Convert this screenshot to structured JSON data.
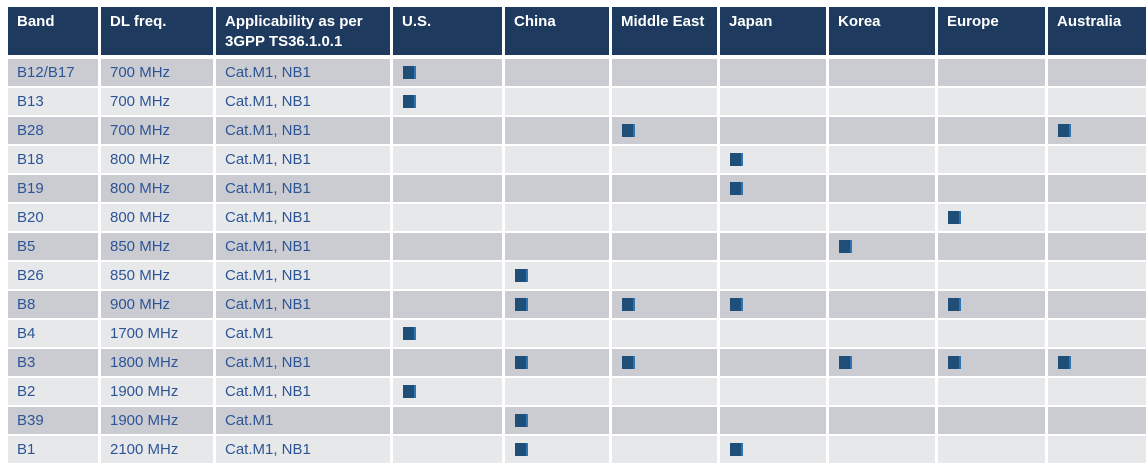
{
  "colors": {
    "page_bg": "#FFFFFF",
    "header_bg": "#1E3A5F",
    "header_text": "#FFFFFF",
    "row_dark": "#CBCCD1",
    "row_light": "#E7E8EA",
    "cell_text": "#2D5596",
    "marker": "#1F4E79",
    "marker_edge": "#2E74B5"
  },
  "table": {
    "columns": [
      {
        "key": "band",
        "label": "Band"
      },
      {
        "key": "dl_freq",
        "label": "DL freq."
      },
      {
        "key": "applicability",
        "label": "Applicability as per 3GPP TS36.1.0.1"
      },
      {
        "key": "us",
        "label": "U.S."
      },
      {
        "key": "china",
        "label": "China"
      },
      {
        "key": "middle_east",
        "label": "Middle East"
      },
      {
        "key": "japan",
        "label": "Japan"
      },
      {
        "key": "korea",
        "label": "Korea"
      },
      {
        "key": "europe",
        "label": "Europe"
      },
      {
        "key": "australia",
        "label": "Australia"
      }
    ],
    "region_keys": [
      "us",
      "china",
      "middle_east",
      "japan",
      "korea",
      "europe",
      "australia"
    ],
    "marker_glyph": "filled-square",
    "rows": [
      {
        "band": "B12/B17",
        "dl_freq": "700 MHz",
        "applicability": "Cat.M1, NB1",
        "regions": [
          "us"
        ]
      },
      {
        "band": "B13",
        "dl_freq": "700 MHz",
        "applicability": "Cat.M1, NB1",
        "regions": [
          "us"
        ]
      },
      {
        "band": "B28",
        "dl_freq": "700 MHz",
        "applicability": "Cat.M1, NB1",
        "regions": [
          "middle_east",
          "australia"
        ]
      },
      {
        "band": "B18",
        "dl_freq": "800 MHz",
        "applicability": "Cat.M1, NB1",
        "regions": [
          "japan"
        ]
      },
      {
        "band": "B19",
        "dl_freq": "800 MHz",
        "applicability": "Cat.M1, NB1",
        "regions": [
          "japan"
        ]
      },
      {
        "band": "B20",
        "dl_freq": "800 MHz",
        "applicability": "Cat.M1, NB1",
        "regions": [
          "europe"
        ]
      },
      {
        "band": "B5",
        "dl_freq": "850 MHz",
        "applicability": "Cat.M1, NB1",
        "regions": [
          "korea"
        ]
      },
      {
        "band": "B26",
        "dl_freq": "850 MHz",
        "applicability": "Cat.M1, NB1",
        "regions": [
          "china"
        ]
      },
      {
        "band": "B8",
        "dl_freq": "900 MHz",
        "applicability": "Cat.M1, NB1",
        "regions": [
          "china",
          "middle_east",
          "japan",
          "europe"
        ]
      },
      {
        "band": "B4",
        "dl_freq": "1700 MHz",
        "applicability": "Cat.M1",
        "regions": [
          "us"
        ]
      },
      {
        "band": "B3",
        "dl_freq": "1800 MHz",
        "applicability": "Cat.M1, NB1",
        "regions": [
          "china",
          "middle_east",
          "korea",
          "europe",
          "australia"
        ]
      },
      {
        "band": "B2",
        "dl_freq": "1900 MHz",
        "applicability": "Cat.M1, NB1",
        "regions": [
          "us"
        ]
      },
      {
        "band": "B39",
        "dl_freq": "1900 MHz",
        "applicability": "Cat.M1",
        "regions": [
          "china"
        ]
      },
      {
        "band": "B1",
        "dl_freq": "2100 MHz",
        "applicability": "Cat.M1, NB1",
        "regions": [
          "china",
          "japan"
        ]
      }
    ]
  }
}
